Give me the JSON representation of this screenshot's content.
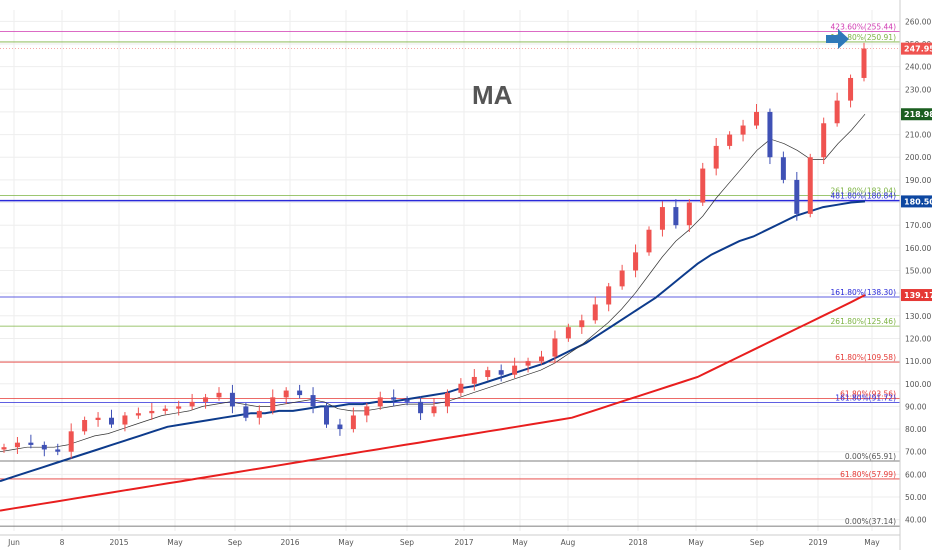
{
  "chart_data": {
    "type": "candlestick",
    "title": "MA",
    "ylim": [
      35,
      265
    ],
    "y_ticks": [
      40,
      50,
      60,
      70,
      80,
      90,
      100,
      110,
      120,
      130,
      140,
      150,
      160,
      170,
      180,
      190,
      200,
      210,
      220,
      230,
      240,
      250,
      260
    ],
    "x_ticks": [
      "Jun",
      "8",
      "2015",
      "May",
      "Sep",
      "2016",
      "May",
      "Sep",
      "2017",
      "May",
      "Aug",
      "2018",
      "May",
      "Sep",
      "2019",
      "May"
    ],
    "fib_levels": [
      {
        "label": "423.60%(255.44)",
        "price": 255.44,
        "color": "#d13ab2"
      },
      {
        "label": "161.80%(250.91)",
        "price": 250.91,
        "color": "#7cb342"
      },
      {
        "label": "261.80%(183.04)",
        "price": 183.04,
        "color": "#7cb342"
      },
      {
        "label": "481.80%(180.84)",
        "price": 180.84,
        "color": "#2a2ad9"
      },
      {
        "label": "161.80%(138.30)",
        "price": 138.3,
        "color": "#2a2ad9"
      },
      {
        "label": "261.80%(125.46)",
        "price": 125.46,
        "color": "#7cb342"
      },
      {
        "label": "61.80%(109.58)",
        "price": 109.58,
        "color": "#e53935"
      },
      {
        "label": "61.80%(93.56)",
        "price": 93.56,
        "color": "#e53935"
      },
      {
        "label": "161.80%(91.72)",
        "price": 91.72,
        "color": "#2a2ad9"
      },
      {
        "label": "0.00%(65.91)",
        "price": 65.91,
        "color": "#555555"
      },
      {
        "label": "61.80%(57.99)",
        "price": 57.99,
        "color": "#e53935"
      },
      {
        "label": "0.00%(37.14)",
        "price": 37.14,
        "color": "#555555"
      }
    ],
    "price_tags": [
      {
        "label": "247.95",
        "price": 247.95,
        "color": "#ef5350"
      },
      {
        "label": "218.98",
        "price": 218.98,
        "color": "#1b5e20"
      },
      {
        "label": "180.50",
        "price": 180.5,
        "color": "#0d47a1"
      },
      {
        "label": "139.17",
        "price": 139.17,
        "color": "#e53935"
      }
    ],
    "series": [
      {
        "name": "",
        "color": "#ef5350",
        "values": [
          72,
          74,
          73,
          71,
          70,
          79,
          84,
          85,
          82,
          86,
          87,
          88,
          89,
          90,
          92,
          94,
          96,
          90,
          85,
          88,
          94,
          97,
          95,
          90,
          82,
          80,
          86,
          90,
          94,
          93,
          92,
          87,
          90,
          96,
          100,
          103,
          106,
          104,
          108,
          110,
          112,
          120,
          125,
          128,
          135,
          143,
          150,
          158,
          168,
          178,
          170,
          180,
          195,
          205,
          210,
          214,
          220,
          200,
          190,
          175,
          200,
          215,
          225,
          235,
          248
        ]
      },
      {
        "name": "",
        "color": "#333333",
        "values": [
          70,
          71,
          72,
          72,
          72,
          73,
          75,
          77,
          78,
          80,
          82,
          84,
          86,
          87,
          88,
          90,
          91,
          92,
          91,
          90,
          90,
          91,
          92,
          93,
          92,
          89,
          88,
          88,
          89,
          90,
          91,
          91,
          91,
          92,
          94,
          96,
          98,
          100,
          102,
          104,
          106,
          109,
          113,
          117,
          122,
          127,
          133,
          140,
          148,
          156,
          163,
          168,
          174,
          182,
          189,
          196,
          203,
          208,
          206,
          203,
          199,
          199,
          206,
          212,
          219
        ]
      },
      {
        "name": "",
        "color": "#0d3b8c",
        "values": [
          57,
          59,
          61,
          63,
          65,
          67,
          69,
          71,
          73,
          75,
          77,
          79,
          81,
          82,
          83,
          84,
          85,
          86,
          87,
          87,
          88,
          88,
          89,
          90,
          90,
          91,
          91,
          92,
          92,
          93,
          94,
          95,
          96,
          98,
          99,
          101,
          103,
          105,
          107,
          109,
          112,
          115,
          118,
          122,
          126,
          130,
          134,
          138,
          143,
          148,
          153,
          157,
          160,
          163,
          165,
          168,
          171,
          174,
          176,
          178,
          179,
          180,
          180.5
        ]
      },
      {
        "name": "",
        "color": "#e81e1e",
        "values": [
          44,
          45,
          46,
          47,
          48,
          49,
          50,
          51,
          52,
          53,
          54,
          55,
          56,
          57,
          58,
          59,
          60,
          61,
          62,
          63,
          64,
          65,
          66,
          67,
          68,
          69,
          70,
          71,
          72,
          73,
          74,
          75,
          76,
          77,
          78,
          79,
          80,
          81,
          82,
          83,
          84,
          85,
          87,
          89,
          91,
          93,
          95,
          97,
          99,
          101,
          103,
          106,
          109,
          112,
          115,
          118,
          121,
          124,
          127,
          130,
          133,
          136,
          139.17
        ]
      }
    ]
  },
  "ui": {
    "title": "MA",
    "arrow_icon": "right-arrow-icon",
    "bull_color": "#ef5350",
    "bear_color": "#3f51b5"
  }
}
